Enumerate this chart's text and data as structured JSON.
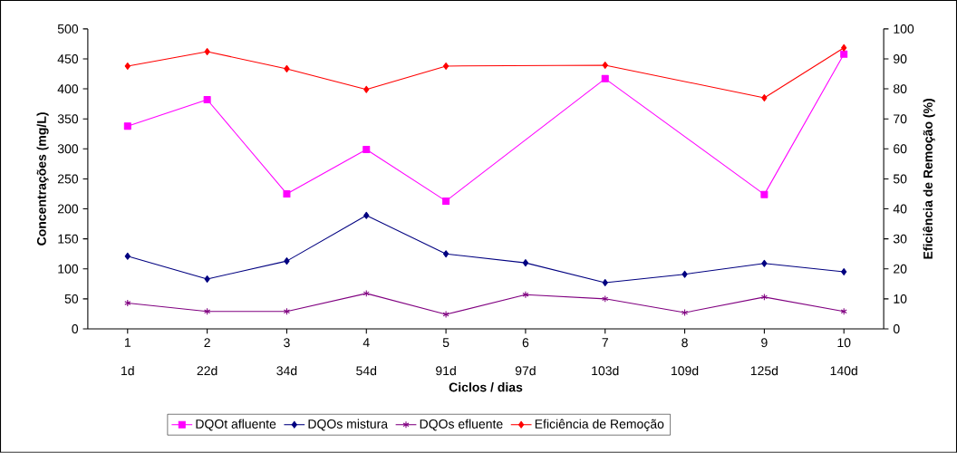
{
  "chart_data": {
    "type": "line",
    "xlabel": "Ciclos / dias",
    "ylabel": "Concentrações (mg/L)",
    "y2label": "Eficiência de Remoção (%)",
    "categories": [
      "1",
      "2",
      "3",
      "4",
      "5",
      "6",
      "7",
      "8",
      "9",
      "10"
    ],
    "annotations": [
      "1d",
      "22d",
      "34d",
      "54d",
      "91d",
      "97d",
      "103d",
      "109d",
      "125d",
      "140d"
    ],
    "series": [
      {
        "name": "DQOt afluente",
        "color": "#ff00ff",
        "marker": "square",
        "values": [
          338,
          382,
          225,
          299,
          213,
          null,
          417,
          null,
          224,
          458
        ]
      },
      {
        "name": "DQOs mistura",
        "color": "#000080",
        "marker": "diamond",
        "values": [
          121,
          83,
          113,
          189,
          125,
          110,
          77,
          91,
          109,
          95
        ]
      },
      {
        "name": "DQOs efluente",
        "color": "#800080",
        "marker": "cross",
        "values": [
          43,
          29,
          29,
          59,
          24,
          57,
          50,
          27,
          53,
          29
        ]
      },
      {
        "name": "Eficiência de Remoção",
        "color": "#ff0000",
        "marker": "diamond",
        "axis": "y2",
        "values": [
          87.6,
          92.4,
          86.7,
          79.8,
          87.6,
          null,
          87.9,
          null,
          77.0,
          93.7
        ]
      }
    ],
    "ylim": [
      0,
      500
    ],
    "yticks": [
      0,
      50,
      100,
      150,
      200,
      250,
      300,
      350,
      400,
      450,
      500
    ],
    "y2lim": [
      0,
      100
    ],
    "y2ticks": [
      0,
      10,
      20,
      30,
      40,
      50,
      60,
      70,
      80,
      90,
      100
    ],
    "legend": "bottom",
    "grid": false
  }
}
